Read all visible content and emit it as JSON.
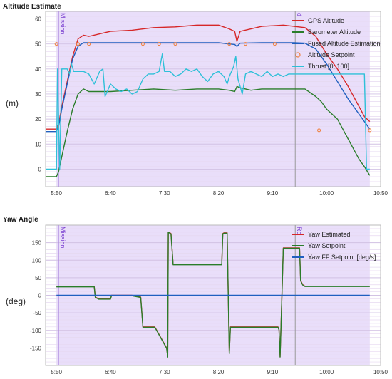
{
  "chart_data": [
    {
      "type": "line",
      "title": "Altitude Estimate",
      "ylabel": "(m)",
      "xlabel": "",
      "xlim": [
        340,
        650
      ],
      "ylim": [
        -7,
        63
      ],
      "x_ticks": [
        350,
        400,
        450,
        500,
        550,
        600,
        650
      ],
      "x_tick_labels": [
        "5:50",
        "6:40",
        "7:30",
        "8:20",
        "9:10",
        "10:00",
        "10:50"
      ],
      "y_ticks": [
        0,
        10,
        20,
        30,
        40,
        50,
        60
      ],
      "grid": true,
      "legend_position": "top-right",
      "mode_labels": [
        {
          "text": "Mission",
          "x": 352
        },
        {
          "text": "d",
          "x": 571
        }
      ],
      "colors": {
        "gps": "#d62728",
        "baro": "#2a7d2a",
        "fused": "#1f5fbf",
        "setpoint": "#f07f3c",
        "thrust": "#2ec0d8",
        "shade": "#e9defa",
        "grid": "#e6d8f0",
        "mode_line": "#b08de0",
        "divider": "#999999"
      },
      "series": [
        {
          "name": "GPS Altitude",
          "color": "#d62728",
          "x": [
            340,
            350,
            352,
            355,
            360,
            365,
            370,
            375,
            380,
            390,
            400,
            420,
            440,
            460,
            480,
            500,
            510,
            515,
            517,
            520,
            530,
            540,
            560,
            570,
            580,
            590,
            600,
            610,
            620,
            630,
            635,
            640
          ],
          "y": [
            16,
            16,
            18,
            25,
            35,
            45,
            52,
            53.5,
            53,
            54,
            55,
            55.5,
            56.5,
            56.8,
            57.5,
            57.5,
            56,
            55,
            51,
            55,
            56,
            57,
            57.5,
            57,
            56.5,
            53,
            46,
            40,
            33,
            25,
            21,
            19
          ]
        },
        {
          "name": "Barometer Altitude",
          "color": "#2a7d2a",
          "x": [
            340,
            350,
            352,
            355,
            360,
            365,
            370,
            375,
            380,
            390,
            400,
            420,
            440,
            460,
            480,
            500,
            510,
            515,
            517,
            520,
            530,
            540,
            560,
            570,
            580,
            590,
            595,
            600,
            610,
            620,
            630,
            635,
            640
          ],
          "y": [
            -3,
            -3,
            -1,
            5,
            15,
            24,
            30,
            32,
            31,
            31,
            31,
            31.5,
            32,
            31.5,
            32,
            32,
            31.5,
            31,
            33,
            32.5,
            31.5,
            32,
            32,
            32,
            32,
            29,
            27,
            24,
            20,
            12,
            4,
            1,
            -2.5
          ]
        },
        {
          "name": "Fused Altitude Estimation",
          "color": "#1f5fbf",
          "x": [
            340,
            350,
            352,
            355,
            360,
            365,
            370,
            375,
            380,
            400,
            440,
            480,
            500,
            510,
            515,
            517,
            520,
            540,
            560,
            570,
            580,
            590,
            600,
            610,
            620,
            630,
            635,
            640
          ],
          "y": [
            15,
            15,
            17,
            24,
            34,
            44,
            49,
            50.5,
            50.5,
            50.5,
            50.5,
            50.5,
            50.5,
            50,
            49.8,
            49,
            50.3,
            50.5,
            50.5,
            50.5,
            50.3,
            48,
            42,
            35,
            28,
            22,
            19,
            16
          ]
        },
        {
          "name": "Altitude Setpoint",
          "color": "#f07f3c",
          "marker": "circle",
          "x": [
            350,
            370,
            380,
            430,
            445,
            460,
            510,
            525,
            552,
            593,
            640
          ],
          "y": [
            50,
            50,
            50,
            50,
            50,
            50,
            50,
            50,
            50,
            15.5,
            15.5
          ]
        },
        {
          "name": "Thrust [0, 100]",
          "color": "#2ec0d8",
          "x": [
            340,
            350,
            351,
            353,
            355,
            360,
            362,
            364,
            366,
            370,
            375,
            380,
            385,
            390,
            393,
            395,
            400,
            405,
            410,
            415,
            420,
            425,
            430,
            435,
            440,
            445,
            448,
            450,
            455,
            460,
            465,
            470,
            475,
            480,
            485,
            490,
            495,
            500,
            505,
            508,
            510,
            512,
            514,
            516,
            518,
            520,
            522,
            525,
            530,
            535,
            540,
            545,
            550,
            555,
            560,
            565,
            570,
            575,
            580,
            583,
            585,
            590,
            595,
            600,
            605,
            610,
            615,
            620,
            625,
            630,
            633,
            635,
            637,
            640
          ],
          "y": [
            0,
            0,
            40,
            0,
            40,
            40,
            38,
            42,
            39,
            39,
            39,
            38,
            34,
            39,
            40,
            29,
            34,
            32,
            31,
            32,
            30,
            31,
            36,
            38,
            38,
            39,
            46,
            39,
            39,
            37,
            38,
            40,
            39,
            40,
            37,
            35,
            38,
            39,
            37,
            34,
            37,
            39,
            41,
            45,
            36,
            33,
            30,
            38,
            39,
            38,
            37,
            39,
            37,
            38,
            37,
            38,
            38,
            38,
            38,
            38,
            38,
            38,
            38,
            38,
            38,
            38,
            38,
            38,
            38,
            38,
            38,
            38,
            0,
            0
          ]
        }
      ]
    },
    {
      "type": "line",
      "title": "Yaw Angle",
      "ylabel": "(deg)",
      "xlabel": "",
      "xlim": [
        340,
        650
      ],
      "ylim": [
        -200,
        200
      ],
      "x_ticks": [
        350,
        400,
        450,
        500,
        550,
        600,
        650
      ],
      "x_tick_labels": [
        "5:50",
        "6:40",
        "7:30",
        "8:20",
        "9:10",
        "10:00",
        "10:50"
      ],
      "y_ticks": [
        -150,
        -100,
        -50,
        0,
        50,
        100,
        150
      ],
      "grid": true,
      "legend_position": "top-right",
      "mode_labels": [
        {
          "text": "Mission",
          "x": 352
        },
        {
          "text": "Re",
          "x": 571
        }
      ],
      "colors": {
        "yaw": "#d62728",
        "setpoint": "#2a7d2a",
        "ff": "#1f5fbf",
        "shade": "#e9defa",
        "grid": "#e6d8f0",
        "mode_line": "#b08de0",
        "divider": "#999999"
      },
      "series": [
        {
          "name": "Yaw Estimated",
          "color": "#d62728",
          "x": [
            350,
            385,
            386,
            389,
            400,
            401,
            420,
            421,
            428,
            430,
            441,
            442,
            452,
            453,
            453.5,
            455,
            456,
            458,
            503,
            504,
            505,
            508,
            510,
            511,
            555,
            556,
            557,
            560,
            575,
            576,
            578,
            580,
            582,
            640
          ],
          "y": [
            25,
            25,
            -5,
            -10,
            -10,
            0,
            0,
            -1,
            -5,
            -90,
            -90,
            -95,
            -150,
            -175,
            180,
            178,
            176,
            88,
            88,
            176,
            178,
            178,
            -165,
            -90,
            -90,
            -98,
            -175,
            135,
            135,
            42,
            30,
            26,
            26,
            26
          ]
        },
        {
          "name": "Yaw Setpoint",
          "color": "#2a7d2a",
          "x": [
            350,
            385,
            386,
            389,
            400,
            401,
            420,
            421,
            428,
            430,
            441,
            442,
            452,
            453,
            453.5,
            455,
            456,
            458,
            503,
            504,
            505,
            508,
            510,
            511,
            555,
            556,
            557,
            560,
            575,
            576,
            578,
            580,
            582,
            640
          ],
          "y": [
            24,
            24,
            -6,
            -11,
            -11,
            -1,
            -1,
            -2,
            -6,
            -91,
            -91,
            -96,
            -151,
            -176,
            179,
            177,
            175,
            87,
            87,
            175,
            177,
            177,
            -166,
            -91,
            -91,
            -99,
            -176,
            134,
            134,
            41,
            29,
            25,
            25,
            25
          ]
        },
        {
          "name": "Yaw FF Setpoint [deg/s]",
          "color": "#1f5fbf",
          "x": [
            350,
            640
          ],
          "y": [
            0,
            0
          ]
        }
      ]
    }
  ]
}
